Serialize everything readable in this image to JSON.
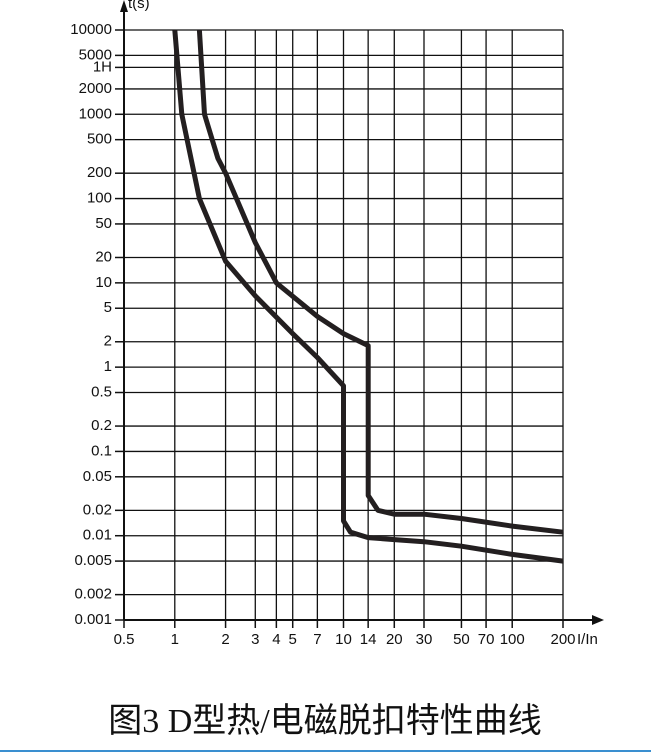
{
  "chart_data": {
    "type": "line",
    "y_label": "t(s)",
    "x_label": "I/In",
    "caption": "图3 D型热/电磁脱扣特性曲线",
    "log_x": true,
    "log_y": true,
    "grid": true,
    "color": "#231f20",
    "xlim": [
      0.5,
      200
    ],
    "ylim": [
      0.001,
      10000
    ],
    "xticks": [
      0.5,
      1,
      2,
      3,
      4,
      5,
      7,
      10,
      14,
      20,
      30,
      50,
      70,
      100,
      200
    ],
    "yticks": [
      10000,
      5000,
      {
        "value": 3600,
        "label": "1H"
      },
      2000,
      1000,
      500,
      200,
      100,
      50,
      20,
      10,
      5,
      2,
      1,
      0.5,
      0.2,
      0.1,
      0.05,
      0.02,
      0.01,
      0.005,
      0.002,
      0.001
    ],
    "series": [
      {
        "x": [
          1,
          1.1,
          1.4,
          2,
          3,
          5,
          7,
          10,
          10,
          11,
          14,
          20,
          30,
          50,
          100,
          200
        ],
        "values": [
          10000,
          1000,
          100,
          18,
          7,
          2.5,
          1.3,
          0.6,
          0.015,
          0.011,
          0.0095,
          0.009,
          0.0085,
          0.0075,
          0.006,
          0.005
        ]
      },
      {
        "x": [
          1.4,
          1.5,
          1.8,
          2,
          3,
          4,
          7,
          10,
          14,
          14,
          16,
          20,
          30,
          50,
          100,
          200
        ],
        "values": [
          10000,
          1000,
          300,
          200,
          30,
          10,
          4,
          2.5,
          1.8,
          0.03,
          0.02,
          0.018,
          0.018,
          0.016,
          0.013,
          0.011
        ]
      }
    ]
  }
}
